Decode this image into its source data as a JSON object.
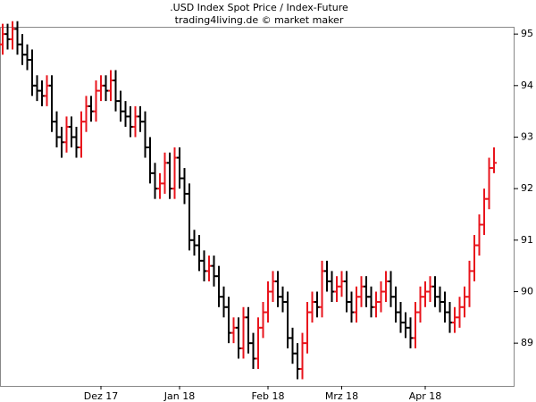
{
  "chart_data": {
    "type": "ohlc",
    "title": ".USD Index Spot Price / Index-Future",
    "subtitle": "trading4living.de © market maker",
    "categories": [
      null,
      null,
      null,
      null,
      null,
      null,
      null,
      null,
      null,
      null,
      null,
      null,
      null,
      null,
      null,
      null,
      null,
      null,
      null,
      null,
      "Dez 17",
      null,
      null,
      null,
      null,
      null,
      null,
      null,
      null,
      null,
      null,
      null,
      null,
      null,
      null,
      null,
      "Jan 18",
      null,
      null,
      null,
      null,
      null,
      null,
      null,
      null,
      null,
      null,
      null,
      null,
      null,
      null,
      null,
      null,
      null,
      "Feb 18",
      null,
      null,
      null,
      null,
      null,
      null,
      null,
      null,
      null,
      null,
      null,
      null,
      null,
      null,
      "Mrz 18",
      null,
      null,
      null,
      null,
      null,
      null,
      null,
      null,
      null,
      null,
      null,
      null,
      null,
      null,
      null,
      null,
      "Apr 18",
      null,
      null,
      null,
      null,
      null,
      null,
      null,
      null,
      null,
      null,
      null,
      null,
      null,
      null
    ],
    "open": [
      94.8,
      95.0,
      94.9,
      95.1,
      94.8,
      94.6,
      94.5,
      94.0,
      93.9,
      93.8,
      94.0,
      93.3,
      93.0,
      92.9,
      93.2,
      93.0,
      92.8,
      93.3,
      93.6,
      93.5,
      93.9,
      94.0,
      93.9,
      94.1,
      93.7,
      93.5,
      93.4,
      93.2,
      93.4,
      93.3,
      92.8,
      92.3,
      92.0,
      92.1,
      92.5,
      92.0,
      92.6,
      92.2,
      91.9,
      91.0,
      90.9,
      90.6,
      90.4,
      90.5,
      90.3,
      89.9,
      89.7,
      89.2,
      89.3,
      88.9,
      89.5,
      89.0,
      88.7,
      89.3,
      89.6,
      90.0,
      90.2,
      89.9,
      89.8,
      89.1,
      88.8,
      88.5,
      89.0,
      89.6,
      89.8,
      89.7,
      90.4,
      90.2,
      90.0,
      90.1,
      90.2,
      89.8,
      89.6,
      89.9,
      90.1,
      89.9,
      89.7,
      89.8,
      90.0,
      90.2,
      89.9,
      89.6,
      89.4,
      89.3,
      89.1,
      89.6,
      89.9,
      90.0,
      90.1,
      89.9,
      89.8,
      89.6,
      89.4,
      89.5,
      89.7,
      89.9,
      90.4,
      90.9,
      91.3,
      91.8,
      92.4
    ],
    "high": [
      95.2,
      95.2,
      95.25,
      95.25,
      95.0,
      94.8,
      94.7,
      94.2,
      94.1,
      94.2,
      94.2,
      93.5,
      93.2,
      93.4,
      93.4,
      93.2,
      93.5,
      93.8,
      93.8,
      94.1,
      94.2,
      94.2,
      94.3,
      94.3,
      93.9,
      93.7,
      93.6,
      93.6,
      93.6,
      93.5,
      93.0,
      92.5,
      92.3,
      92.7,
      92.7,
      92.8,
      92.8,
      92.4,
      92.1,
      91.2,
      91.1,
      90.8,
      90.7,
      90.7,
      90.5,
      90.1,
      89.9,
      89.5,
      89.5,
      89.7,
      89.7,
      89.2,
      89.5,
      89.8,
      90.2,
      90.4,
      90.4,
      90.1,
      90.0,
      89.3,
      89.0,
      89.2,
      89.8,
      90.0,
      90.0,
      90.6,
      90.6,
      90.4,
      90.3,
      90.4,
      90.4,
      90.0,
      90.1,
      90.3,
      90.3,
      90.1,
      90.0,
      90.2,
      90.4,
      90.4,
      90.1,
      89.8,
      89.6,
      89.5,
      89.8,
      90.1,
      90.2,
      90.3,
      90.3,
      90.1,
      90.0,
      89.8,
      89.7,
      89.9,
      90.1,
      90.6,
      91.1,
      91.5,
      92.0,
      92.6,
      92.8
    ],
    "low": [
      94.6,
      94.7,
      94.7,
      94.6,
      94.4,
      94.3,
      93.8,
      93.7,
      93.6,
      93.6,
      93.1,
      92.8,
      92.6,
      92.7,
      92.8,
      92.6,
      92.6,
      93.1,
      93.3,
      93.3,
      93.7,
      93.7,
      93.7,
      93.5,
      93.3,
      93.2,
      93.0,
      93.0,
      93.1,
      92.6,
      92.1,
      91.8,
      91.8,
      91.9,
      91.8,
      91.8,
      92.0,
      91.7,
      90.8,
      90.7,
      90.4,
      90.2,
      90.2,
      90.1,
      89.7,
      89.5,
      89.0,
      89.0,
      88.7,
      88.7,
      88.8,
      88.5,
      88.5,
      89.1,
      89.4,
      89.8,
      89.7,
      89.6,
      88.9,
      88.6,
      88.3,
      88.3,
      88.8,
      89.4,
      89.5,
      89.5,
      90.0,
      89.8,
      89.8,
      89.9,
      89.6,
      89.4,
      89.4,
      89.7,
      89.7,
      89.5,
      89.5,
      89.6,
      89.8,
      89.7,
      89.4,
      89.2,
      89.1,
      88.9,
      88.9,
      89.4,
      89.7,
      89.8,
      89.7,
      89.6,
      89.4,
      89.2,
      89.2,
      89.3,
      89.5,
      89.7,
      90.2,
      90.7,
      91.1,
      91.6,
      92.3
    ],
    "close": [
      95.0,
      94.9,
      95.1,
      94.8,
      94.6,
      94.5,
      94.0,
      93.9,
      93.8,
      94.0,
      93.3,
      93.0,
      92.9,
      93.2,
      93.0,
      92.8,
      93.3,
      93.6,
      93.5,
      93.9,
      94.0,
      93.9,
      94.1,
      93.7,
      93.5,
      93.4,
      93.2,
      93.4,
      93.3,
      92.8,
      92.3,
      92.0,
      92.1,
      92.5,
      92.0,
      92.6,
      92.2,
      91.9,
      91.0,
      90.9,
      90.6,
      90.4,
      90.5,
      90.3,
      89.9,
      89.7,
      89.2,
      89.3,
      88.9,
      89.5,
      89.0,
      88.7,
      89.3,
      89.6,
      90.0,
      90.2,
      89.9,
      89.8,
      89.1,
      88.8,
      88.5,
      89.0,
      89.6,
      89.8,
      89.7,
      90.4,
      90.2,
      90.0,
      90.1,
      90.2,
      89.8,
      89.6,
      89.9,
      90.1,
      89.9,
      89.7,
      89.8,
      90.0,
      90.2,
      89.9,
      89.6,
      89.4,
      89.3,
      89.1,
      89.6,
      89.9,
      90.0,
      90.1,
      89.9,
      89.8,
      89.6,
      89.4,
      89.5,
      89.7,
      89.9,
      90.4,
      90.9,
      91.3,
      91.8,
      92.4,
      92.5
    ],
    "up_color": "#e8141c",
    "down_color": "#000000",
    "ylim": [
      88.17,
      95.28
    ],
    "yticks": [
      89,
      90,
      91,
      92,
      93,
      94,
      95
    ]
  }
}
